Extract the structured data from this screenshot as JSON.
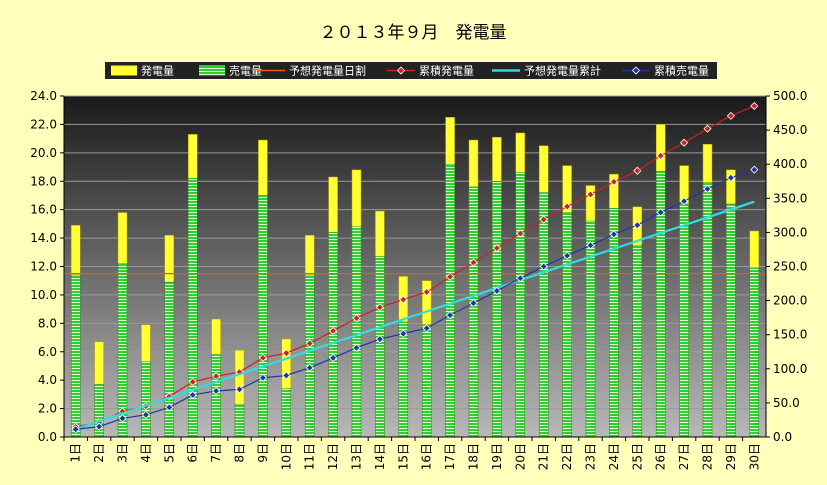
{
  "chart_data": {
    "type": "bar",
    "title": "２０１３年９月　発電量",
    "categories": [
      "1日",
      "2日",
      "3日",
      "4日",
      "5日",
      "6日",
      "7日",
      "8日",
      "9日",
      "10日",
      "11日",
      "12日",
      "13日",
      "14日",
      "15日",
      "16日",
      "17日",
      "18日",
      "19日",
      "20日",
      "21日",
      "22日",
      "23日",
      "24日",
      "25日",
      "26日",
      "27日",
      "28日",
      "29日",
      "30日"
    ],
    "series": [
      {
        "name": "発電量",
        "axis": "left",
        "kind": "bar-total",
        "color": "#FFFF33",
        "values": [
          14.9,
          6.7,
          15.8,
          7.9,
          14.2,
          21.3,
          8.3,
          6.1,
          20.9,
          6.9,
          14.2,
          18.3,
          18.8,
          15.9,
          11.3,
          11.0,
          22.5,
          20.9,
          21.1,
          21.4,
          20.5,
          19.1,
          17.7,
          18.5,
          16.2,
          22.0,
          19.1,
          20.6,
          18.8,
          14.5
        ]
      },
      {
        "name": "売電量",
        "axis": "left",
        "kind": "bar-inner",
        "color": "#33CC33",
        "values": [
          11.4,
          3.7,
          12.2,
          5.3,
          10.9,
          18.2,
          5.8,
          2.3,
          17.0,
          3.4,
          11.4,
          14.4,
          14.8,
          12.7,
          8.1,
          7.9,
          19.2,
          17.6,
          18.0,
          18.6,
          17.2,
          15.8,
          15.2,
          16.1,
          13.5,
          18.7,
          16.4,
          17.9,
          16.4,
          11.9
        ]
      },
      {
        "name": "予想発電量日割",
        "axis": "left",
        "kind": "hline",
        "color": "#E06010",
        "value": 11.5
      },
      {
        "name": "累積発電量",
        "axis": "right",
        "kind": "line",
        "color": "#CC2222",
        "values": [
          14.9,
          21.6,
          37.4,
          45.3,
          59.5,
          80.8,
          89.1,
          95.2,
          116.1,
          123.0,
          137.2,
          155.5,
          174.3,
          190.2,
          201.5,
          212.5,
          235.0,
          255.9,
          277.0,
          298.4,
          318.9,
          338.0,
          355.7,
          374.2,
          390.4,
          412.4,
          431.5,
          452.1,
          470.9,
          485.4
        ]
      },
      {
        "name": "予想発電量累計",
        "axis": "right",
        "kind": "line",
        "color": "#33DDDD",
        "values": [
          11.5,
          23.0,
          34.5,
          46.0,
          57.5,
          69.0,
          80.5,
          92.0,
          103.5,
          115.0,
          126.5,
          138.0,
          149.5,
          161.0,
          172.5,
          184.0,
          195.5,
          207.0,
          218.5,
          230.0,
          241.5,
          253.0,
          264.5,
          276.0,
          287.5,
          299.0,
          310.5,
          322.0,
          333.5,
          345.0
        ]
      },
      {
        "name": "累積売電量",
        "axis": "right",
        "kind": "line",
        "color": "#2233AA",
        "values": [
          11.4,
          15.1,
          27.3,
          32.6,
          43.5,
          61.7,
          67.5,
          69.8,
          86.8,
          90.2,
          101.6,
          116.0,
          130.8,
          143.5,
          151.6,
          159.5,
          178.7,
          196.3,
          214.3,
          232.9,
          250.1,
          265.9,
          281.1,
          297.2,
          310.7,
          329.4,
          345.8,
          363.7,
          380.1,
          392.0
        ]
      }
    ],
    "left_axis": {
      "min": 0,
      "max": 24,
      "step": 2,
      "decimals": 1
    },
    "right_axis": {
      "min": 0,
      "max": 500,
      "step": 50,
      "decimals": 1
    },
    "legend": "top",
    "grid": true
  },
  "colors": {
    "page_bg": "#FFFFBB",
    "plot_bg_top": "#1A1A1A",
    "plot_bg_bottom": "#B8B8B8",
    "legend_bg": "#222222"
  }
}
